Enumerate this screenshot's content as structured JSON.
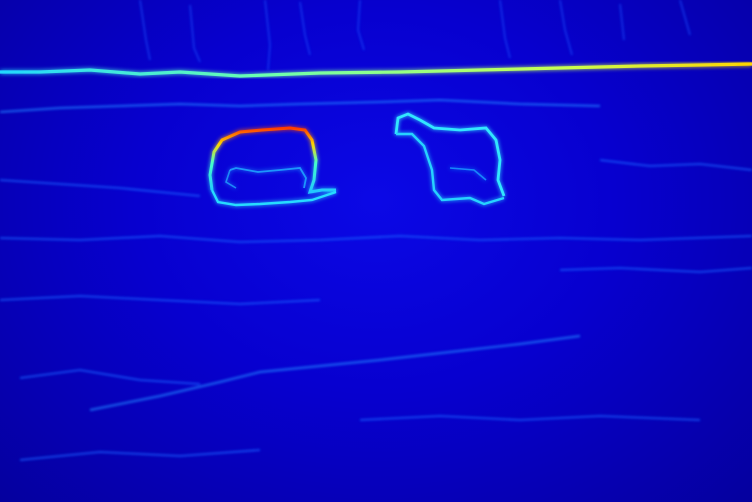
{
  "image": {
    "kind": "edge-magnitude heatmap",
    "colormap": "jet",
    "colors": {
      "background": "#0700cf",
      "low_edge": "#1a60ff",
      "mid_edge": "#22d7ff",
      "high_edge": "#ffd400",
      "peak_edge": "#ff2a00"
    },
    "subjects": [
      "horizon-line",
      "animal-outline-left",
      "animal-outline-right"
    ]
  }
}
